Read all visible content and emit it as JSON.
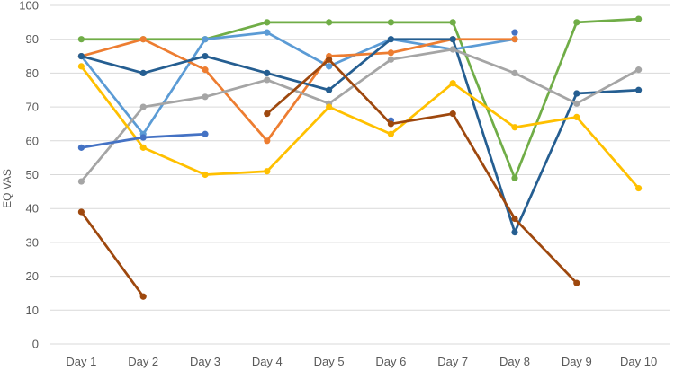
{
  "chart_data": {
    "type": "line",
    "title": "",
    "xlabel": "",
    "ylabel": "EQ VAS",
    "ylim": [
      0,
      100
    ],
    "yticks": [
      0,
      10,
      20,
      30,
      40,
      50,
      60,
      70,
      80,
      90,
      100
    ],
    "grid": "horizontal",
    "legend": "none",
    "categories": [
      "Day 1",
      "Day 2",
      "Day 3",
      "Day 4",
      "Day 5",
      "Day 6",
      "Day 7",
      "Day 8",
      "Day 9",
      "Day 10"
    ],
    "series": [
      {
        "color": "#70AD47",
        "values": [
          90,
          90,
          90,
          95,
          95,
          95,
          95,
          49,
          95,
          96
        ]
      },
      {
        "color": "#5B9BD5",
        "values": [
          85,
          62,
          90,
          92,
          82,
          90,
          87,
          90,
          null,
          null
        ]
      },
      {
        "color": "#ED7D31",
        "values": [
          85,
          90,
          81,
          60,
          85,
          86,
          90,
          90,
          null,
          null
        ]
      },
      {
        "color": "#255E91",
        "values": [
          85,
          80,
          85,
          80,
          75,
          90,
          90,
          33,
          74,
          75
        ]
      },
      {
        "color": "#A5A5A5",
        "values": [
          48,
          70,
          73,
          78,
          71,
          84,
          87,
          80,
          71,
          81
        ]
      },
      {
        "color": "#FFC000",
        "values": [
          82,
          58,
          50,
          51,
          70,
          62,
          77,
          64,
          67,
          46
        ]
      },
      {
        "color": "#4472C4",
        "values": [
          58,
          61,
          62,
          null,
          null,
          66,
          null,
          92,
          null,
          null
        ]
      },
      {
        "color": "#9E480E",
        "values": [
          39,
          14,
          null,
          68,
          84,
          65,
          68,
          37,
          18,
          null
        ]
      }
    ]
  }
}
